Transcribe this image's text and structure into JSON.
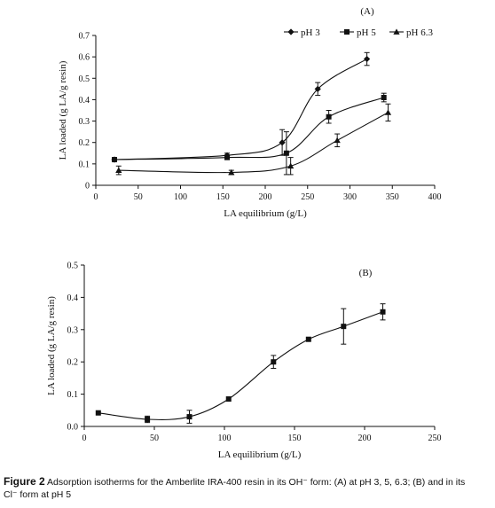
{
  "chart_data": [
    {
      "type": "line",
      "panel_label": "(A)",
      "xlabel": "LA equilibrium (g/L)",
      "ylabel": "LA loaded (g LA/g resin)",
      "xlim": [
        0,
        400
      ],
      "ylim": [
        0,
        0.7
      ],
      "xticks": [
        "0",
        "50",
        "100",
        "150",
        "200",
        "250",
        "300",
        "350",
        "400"
      ],
      "yticks": [
        "0",
        "0.1",
        "0.2",
        "0.3",
        "0.4",
        "0.5",
        "0.6",
        "0.7"
      ],
      "grid": false,
      "legend_position": "top-right",
      "series": [
        {
          "name": "pH 3",
          "marker": "diamond",
          "points": [
            {
              "x": 22,
              "y": 0.12,
              "err": 0.01
            },
            {
              "x": 155,
              "y": 0.14,
              "err": 0.01
            },
            {
              "x": 220,
              "y": 0.2,
              "err": 0.06
            },
            {
              "x": 262,
              "y": 0.45,
              "err": 0.03
            },
            {
              "x": 320,
              "y": 0.59,
              "err": 0.03
            }
          ]
        },
        {
          "name": "pH 5",
          "marker": "square",
          "points": [
            {
              "x": 22,
              "y": 0.12,
              "err": 0.01
            },
            {
              "x": 155,
              "y": 0.13,
              "err": 0.01
            },
            {
              "x": 225,
              "y": 0.15,
              "err": 0.1
            },
            {
              "x": 275,
              "y": 0.32,
              "err": 0.03
            },
            {
              "x": 340,
              "y": 0.41,
              "err": 0.02
            }
          ]
        },
        {
          "name": "pH 6.3",
          "marker": "triangle",
          "points": [
            {
              "x": 27,
              "y": 0.07,
              "err": 0.02
            },
            {
              "x": 160,
              "y": 0.06,
              "err": 0.01
            },
            {
              "x": 230,
              "y": 0.09,
              "err": 0.04
            },
            {
              "x": 285,
              "y": 0.21,
              "err": 0.03
            },
            {
              "x": 345,
              "y": 0.34,
              "err": 0.04
            }
          ]
        }
      ]
    },
    {
      "type": "line",
      "panel_label": "(B)",
      "xlabel": "LA equilibrium (g/L)",
      "ylabel": "LA loaded (g LA/g resin)",
      "xlim": [
        0,
        250
      ],
      "ylim": [
        0,
        0.5
      ],
      "xticks": [
        "0",
        "50",
        "100",
        "150",
        "200",
        "250"
      ],
      "yticks": [
        "0.0",
        "0.1",
        "0.2",
        "0.3",
        "0.4",
        "0.5"
      ],
      "grid": false,
      "series": [
        {
          "marker": "square",
          "points": [
            {
              "x": 10,
              "y": 0.042,
              "err": 0.0
            },
            {
              "x": 45,
              "y": 0.022,
              "err": 0.01
            },
            {
              "x": 75,
              "y": 0.03,
              "err": 0.02
            },
            {
              "x": 103,
              "y": 0.085,
              "err": 0.0
            },
            {
              "x": 135,
              "y": 0.2,
              "err": 0.02
            },
            {
              "x": 160,
              "y": 0.27,
              "err": 0.0
            },
            {
              "x": 185,
              "y": 0.31,
              "err": 0.055
            },
            {
              "x": 213,
              "y": 0.355,
              "err": 0.025
            }
          ]
        }
      ]
    }
  ],
  "caption": {
    "label": "Figure 2",
    "text_line1": " Adsorption isotherms for the Amberlite IRA-400 resin in its OH⁻ form: (A) at pH 3, 5, 6.3; (B) and in its",
    "text_line2": "Cl⁻ form at pH 5"
  }
}
